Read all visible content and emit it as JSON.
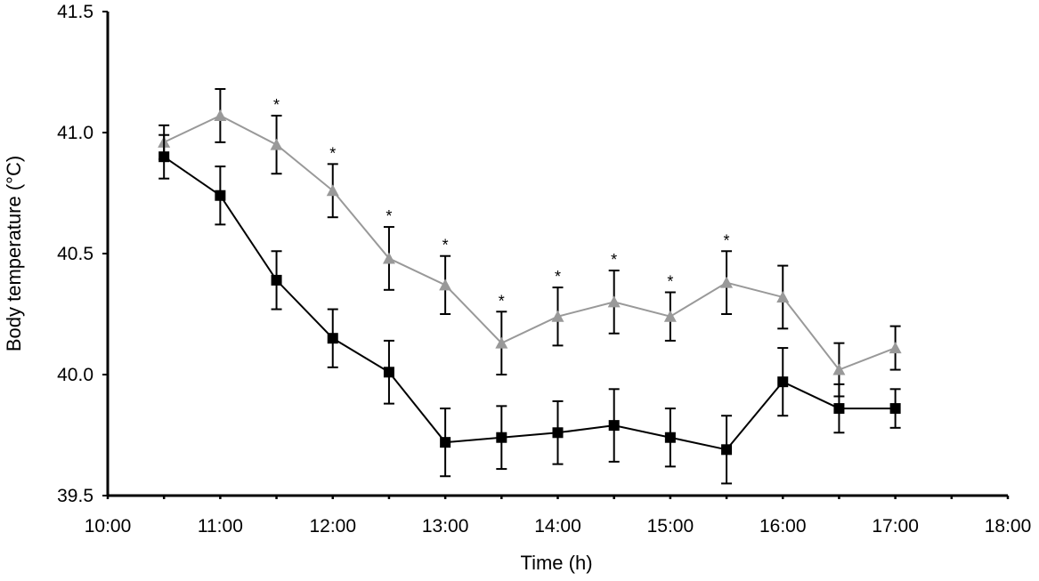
{
  "chart_data": {
    "type": "line",
    "xlabel": "Time (h)",
    "ylabel": "Body temperature (°C)",
    "xlim": [
      "10:00",
      "18:00"
    ],
    "ylim": [
      39.5,
      41.5
    ],
    "x_ticks": [
      "10:00",
      "11:00",
      "12:00",
      "13:00",
      "14:00",
      "15:00",
      "16:00",
      "17:00",
      "18:00"
    ],
    "y_ticks": [
      "39.5",
      "40.0",
      "40.5",
      "41.0",
      "41.5"
    ],
    "grid": false,
    "legend": "none",
    "series": [
      {
        "marker": "triangle",
        "color": "#999999",
        "x": [
          "10:30",
          "11:00",
          "11:30",
          "12:00",
          "12:30",
          "13:00",
          "13:30",
          "14:00",
          "14:30",
          "15:00",
          "15:30",
          "16:00",
          "16:30",
          "17:00"
        ],
        "values": [
          40.96,
          41.07,
          40.95,
          40.76,
          40.48,
          40.37,
          40.13,
          40.24,
          40.3,
          40.24,
          40.38,
          40.32,
          40.02,
          40.11
        ],
        "error": [
          0.07,
          0.11,
          0.12,
          0.11,
          0.13,
          0.12,
          0.13,
          0.12,
          0.13,
          0.1,
          0.13,
          0.13,
          0.11,
          0.09
        ]
      },
      {
        "marker": "square",
        "color": "#000000",
        "x": [
          "10:30",
          "11:00",
          "11:30",
          "12:00",
          "12:30",
          "13:00",
          "13:30",
          "14:00",
          "14:30",
          "15:00",
          "15:30",
          "16:00",
          "16:30",
          "17:00"
        ],
        "values": [
          40.9,
          40.74,
          40.39,
          40.15,
          40.01,
          39.72,
          39.74,
          39.76,
          39.79,
          39.74,
          39.69,
          39.97,
          39.86,
          39.86
        ],
        "error": [
          0.09,
          0.12,
          0.12,
          0.12,
          0.13,
          0.14,
          0.13,
          0.13,
          0.15,
          0.12,
          0.14,
          0.14,
          0.1,
          0.08
        ]
      }
    ],
    "annotations": [
      {
        "text": "*",
        "x": "11:30"
      },
      {
        "text": "*",
        "x": "12:00"
      },
      {
        "text": "*",
        "x": "12:30"
      },
      {
        "text": "*",
        "x": "13:00"
      },
      {
        "text": "*",
        "x": "13:30"
      },
      {
        "text": "*",
        "x": "14:00"
      },
      {
        "text": "*",
        "x": "14:30"
      },
      {
        "text": "*",
        "x": "15:00"
      },
      {
        "text": "*",
        "x": "15:30"
      }
    ]
  }
}
